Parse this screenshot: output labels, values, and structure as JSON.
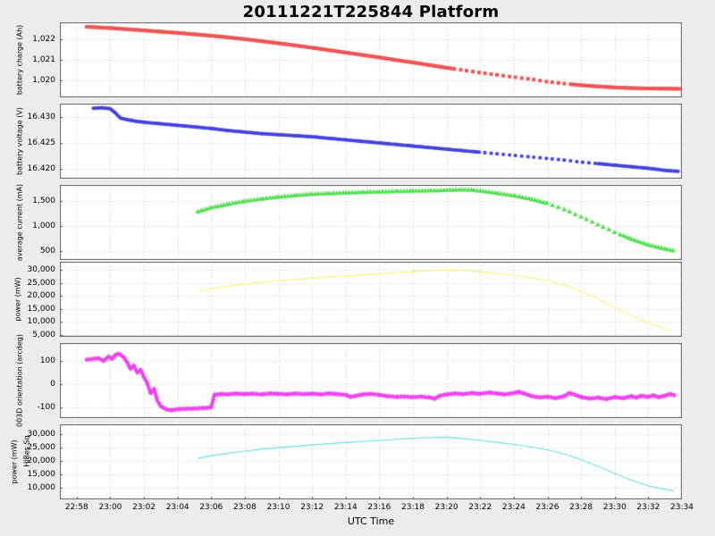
{
  "title": "20111221T225844 Platform",
  "x_axis": {
    "label": "UTC Time",
    "tick_labels": [
      "22:58",
      "23:00",
      "23:02",
      "23:04",
      "23:06",
      "23:08",
      "23:10",
      "23:12",
      "23:14",
      "23:16",
      "23:18",
      "23:20",
      "23:22",
      "23:24",
      "23:26",
      "23:28",
      "23:30",
      "23:32",
      "23:34"
    ]
  },
  "chart_data": [
    {
      "type": "scatter",
      "ylabel": "battery charge (Ah)",
      "marker": "square",
      "color": "#ee5555",
      "ylim": [
        1.01915,
        1.02285
      ],
      "yticks": [
        {
          "v": 1.022,
          "label": "1,022"
        },
        {
          "v": 1.021,
          "label": "1,021"
        },
        {
          "v": 1.02,
          "label": "1,020"
        }
      ],
      "spacing": 2.2,
      "sparse": [
        22.5,
        29.5,
        7
      ],
      "x": [
        0.6,
        2,
        3,
        4,
        5,
        6,
        7,
        8,
        9,
        10,
        11,
        12,
        13,
        14,
        15,
        16,
        17,
        18,
        19,
        20,
        21,
        22,
        23,
        24,
        25,
        26,
        27,
        28,
        29,
        30,
        31,
        32,
        33,
        34,
        35,
        35.9
      ],
      "y": [
        1.02263,
        1.02257,
        1.02251,
        1.02245,
        1.02239,
        1.02233,
        1.02226,
        1.02219,
        1.02211,
        1.02202,
        1.02192,
        1.02182,
        1.02171,
        1.0216,
        1.02148,
        1.02136,
        1.02124,
        1.02112,
        1.02099,
        1.02087,
        1.02074,
        1.02061,
        1.02049,
        1.02037,
        1.02026,
        1.02015,
        1.02005,
        1.01992,
        1.01983,
        1.01975,
        1.01969,
        1.01964,
        1.01961,
        1.01959,
        1.01958,
        1.01957
      ]
    },
    {
      "type": "scatter",
      "ylabel": "battery voltage (V)",
      "marker": "circle",
      "color": "#4444dd",
      "ylim": [
        16.4181,
        16.4326
      ],
      "yticks": [
        {
          "v": 16.43,
          "label": "16.430"
        },
        {
          "v": 16.425,
          "label": "16.425"
        },
        {
          "v": 16.42,
          "label": "16.420"
        }
      ],
      "spacing": 2.2,
      "sparse": [
        24,
        31,
        7
      ],
      "x": [
        1,
        1.5,
        2,
        2.3,
        2.6,
        3,
        3.5,
        4,
        5,
        6,
        7,
        8,
        9,
        10,
        11,
        12,
        13,
        14,
        15,
        16,
        17,
        18,
        19,
        20,
        21,
        22,
        23,
        24,
        25,
        26,
        27,
        28,
        29,
        30,
        31,
        32,
        33,
        34,
        35,
        35.8
      ],
      "y": [
        16.4317,
        16.4318,
        16.4316,
        16.4308,
        16.4298,
        16.4295,
        16.4292,
        16.429,
        16.4287,
        16.4284,
        16.4281,
        16.4278,
        16.4274,
        16.4271,
        16.4268,
        16.4266,
        16.4264,
        16.4262,
        16.4259,
        16.4256,
        16.4253,
        16.425,
        16.4247,
        16.4244,
        16.4241,
        16.4238,
        16.4235,
        16.4232,
        16.4229,
        16.4226,
        16.4223,
        16.422,
        16.4217,
        16.4213,
        16.421,
        16.4207,
        16.4204,
        16.4201,
        16.4197,
        16.4195
      ]
    },
    {
      "type": "scatter",
      "ylabel": "average current (mA)",
      "marker": "triangle",
      "color": "#55e055",
      "ylim": [
        321,
        1821
      ],
      "yticks": [
        {
          "v": 1500,
          "label": "1,500"
        },
        {
          "v": 1000,
          "label": "1,000"
        },
        {
          "v": 500,
          "label": "500"
        }
      ],
      "spacing": 3.2,
      "sparse": [
        28,
        32.5,
        7
      ],
      "x": [
        7.2,
        7.5,
        8,
        9,
        10,
        11,
        12,
        13,
        14,
        15,
        16,
        17,
        18,
        19,
        20,
        21,
        22,
        22.8,
        23.5,
        24,
        25,
        26,
        27,
        28,
        29,
        30,
        31,
        32,
        33,
        34,
        35,
        35.5
      ],
      "y": [
        1290,
        1320,
        1370,
        1440,
        1500,
        1545,
        1585,
        1615,
        1640,
        1655,
        1668,
        1678,
        1688,
        1698,
        1705,
        1712,
        1718,
        1730,
        1725,
        1705,
        1660,
        1610,
        1545,
        1455,
        1335,
        1185,
        1030,
        880,
        740,
        625,
        545,
        510
      ]
    },
    {
      "type": "line",
      "ylabel": "power (mW)",
      "marker": "none",
      "color": "#f5f578",
      "ylim": [
        4300,
        33100
      ],
      "yticks": [
        {
          "v": 30000,
          "label": "30,000"
        },
        {
          "v": 25000,
          "label": "25,000"
        },
        {
          "v": 20000,
          "label": "20,000"
        },
        {
          "v": 15000,
          "label": "15,000"
        },
        {
          "v": 10000,
          "label": "10,000"
        },
        {
          "v": 5000,
          "label": "5,000"
        }
      ],
      "x": [
        7.2,
        8,
        9,
        10,
        11,
        12,
        13,
        14,
        15,
        16,
        17,
        18,
        19,
        20,
        21,
        22,
        23,
        24,
        25,
        26,
        27,
        28,
        29,
        30,
        31,
        32,
        33,
        34,
        35,
        35.5
      ],
      "y": [
        21800,
        22800,
        23700,
        24500,
        25200,
        25800,
        26300,
        26800,
        27300,
        27700,
        28100,
        28500,
        28900,
        29300,
        29700,
        29900,
        29800,
        29300,
        28600,
        27800,
        26900,
        25800,
        24200,
        21800,
        18800,
        15600,
        12400,
        9600,
        7400,
        6600
      ]
    },
    {
      "type": "scatter",
      "ylabel": "003D orientation (arcdeg)",
      "marker": "diamond",
      "color": "#ee44ee",
      "ylim": [
        -146,
        177
      ],
      "yticks": [
        {
          "v": 100,
          "label": "100"
        },
        {
          "v": 0,
          "label": "0"
        },
        {
          "v": -100,
          "label": "-100"
        }
      ],
      "spacing": 2.4,
      "x": [
        0.6,
        1.3,
        1.6,
        1.9,
        2.1,
        2.3,
        2.5,
        2.8,
        3,
        3.2,
        3.4,
        3.6,
        3.8,
        4,
        4.2,
        4.4,
        4.6,
        4.8,
        5,
        5.3,
        5.6,
        6,
        6.5,
        7,
        7.5,
        8,
        8.2,
        8.6,
        9,
        9.5,
        10,
        10.5,
        11,
        11.5,
        12,
        12.5,
        13,
        13.5,
        14,
        14.5,
        15,
        15.5,
        16,
        16.3,
        16.6,
        17,
        17.5,
        18,
        18.5,
        19,
        19.5,
        20,
        20.5,
        21,
        21.3,
        21.6,
        22,
        22.5,
        23,
        23.5,
        24,
        24.5,
        25,
        25.5,
        26,
        26.3,
        26.6,
        27,
        27.5,
        28,
        28.5,
        29,
        29.3,
        29.6,
        30,
        30.5,
        31,
        31.5,
        32,
        32.5,
        33,
        33.3,
        33.6,
        34,
        34.3,
        34.6,
        35,
        35.3,
        35.6
      ],
      "y": [
        105,
        112,
        100,
        118,
        108,
        125,
        132,
        115,
        95,
        65,
        80,
        50,
        62,
        30,
        5,
        -40,
        -20,
        -70,
        -95,
        -108,
        -112,
        -108,
        -106,
        -105,
        -103,
        -100,
        -45,
        -42,
        -44,
        -40,
        -43,
        -41,
        -44,
        -40,
        -42,
        -44,
        -40,
        -43,
        -41,
        -44,
        -40,
        -43,
        -46,
        -55,
        -50,
        -44,
        -42,
        -46,
        -52,
        -55,
        -53,
        -56,
        -54,
        -57,
        -62,
        -50,
        -44,
        -40,
        -43,
        -38,
        -42,
        -36,
        -40,
        -44,
        -38,
        -33,
        -40,
        -50,
        -57,
        -54,
        -60,
        -52,
        -38,
        -45,
        -55,
        -62,
        -58,
        -64,
        -56,
        -60,
        -52,
        -58,
        -50,
        -55,
        -48,
        -56,
        -50,
        -42,
        -48
      ]
    },
    {
      "type": "line",
      "ylabel": "power (mW)",
      "ylabel2": "HiRes Sq",
      "marker": "none",
      "color": "#6fdede",
      "ylim": [
        5700,
        33700
      ],
      "yticks": [
        {
          "v": 30000,
          "label": "30,000"
        },
        {
          "v": 25000,
          "label": "25,000"
        },
        {
          "v": 20000,
          "label": "20,000"
        },
        {
          "v": 15000,
          "label": "15,000"
        },
        {
          "v": 10000,
          "label": "10,000"
        }
      ],
      "x": [
        7.2,
        8,
        9,
        10,
        11,
        12,
        13,
        14,
        15,
        16,
        17,
        18,
        19,
        20,
        21,
        22,
        23,
        24,
        25,
        26,
        27,
        28,
        29,
        30,
        31,
        32,
        33,
        34,
        35,
        35.5
      ],
      "y": [
        21000,
        22000,
        22900,
        23700,
        24400,
        25000,
        25500,
        26000,
        26500,
        26900,
        27300,
        27700,
        28100,
        28500,
        28800,
        28900,
        28400,
        27700,
        27000,
        26200,
        25300,
        24200,
        22600,
        20500,
        18000,
        15400,
        12900,
        10800,
        9400,
        8900
      ]
    }
  ]
}
